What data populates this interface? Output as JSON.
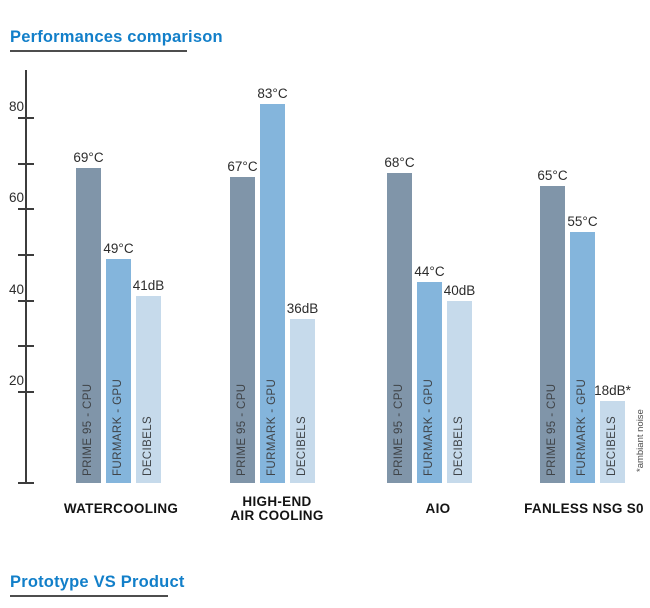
{
  "header": {
    "title": "Performances comparison"
  },
  "footer": {
    "title": "Prototype VS Product"
  },
  "colors": {
    "accent_blue": "#127fc9",
    "rule_dark": "#4d4d4d",
    "axis": "#3c3c3c",
    "bar_cpu": "#8095a9",
    "bar_gpu": "#84b5dc",
    "bar_db": "#c6daeb",
    "value_text": "#2c2c2c",
    "in_bar_text": "#3f4347",
    "group_text": "#141414",
    "annotation_text": "#4a4a4a"
  },
  "chart_data": {
    "type": "bar",
    "title": "Performances comparison",
    "categories": [
      "WATERCOOLING",
      "HIGH-END AIR COOLING",
      "AIO",
      "FANLESS NSG S0"
    ],
    "category_label_lines": [
      [
        "WATERCOOLING"
      ],
      [
        "HIGH-END",
        "AIR COOLING"
      ],
      [
        "AIO"
      ],
      [
        "FANLESS NSG S0"
      ]
    ],
    "series": [
      {
        "name": "PRIME 95 - CPU",
        "unit": "°C",
        "color": "#8095a9",
        "values": [
          69,
          67,
          68,
          65
        ],
        "labels": [
          "69°C",
          "67°C",
          "68°C",
          "65°C"
        ]
      },
      {
        "name": "FURMARK - GPU",
        "unit": "°C",
        "color": "#84b5dc",
        "values": [
          49,
          83,
          44,
          55
        ],
        "labels": [
          "49°C",
          "83°C",
          "44°C",
          "55°C"
        ]
      },
      {
        "name": "DECIBELS",
        "unit": "dB",
        "color": "#c6daeb",
        "values": [
          41,
          36,
          40,
          18
        ],
        "labels": [
          "41dB",
          "36dB",
          "40dB",
          "18dB*"
        ]
      }
    ],
    "ylim": [
      0,
      90
    ],
    "yticks": [
      {
        "value": 80,
        "label": "80"
      },
      {
        "value": 70,
        "label": ""
      },
      {
        "value": 60,
        "label": "60"
      },
      {
        "value": 50,
        "label": ""
      },
      {
        "value": 40,
        "label": "40"
      },
      {
        "value": 30,
        "label": ""
      },
      {
        "value": 20,
        "label": "20"
      },
      {
        "value": 0,
        "label": ""
      }
    ],
    "grid": false,
    "legend_position": "labels-inside-bars",
    "annotation": "*ambiant noise"
  }
}
